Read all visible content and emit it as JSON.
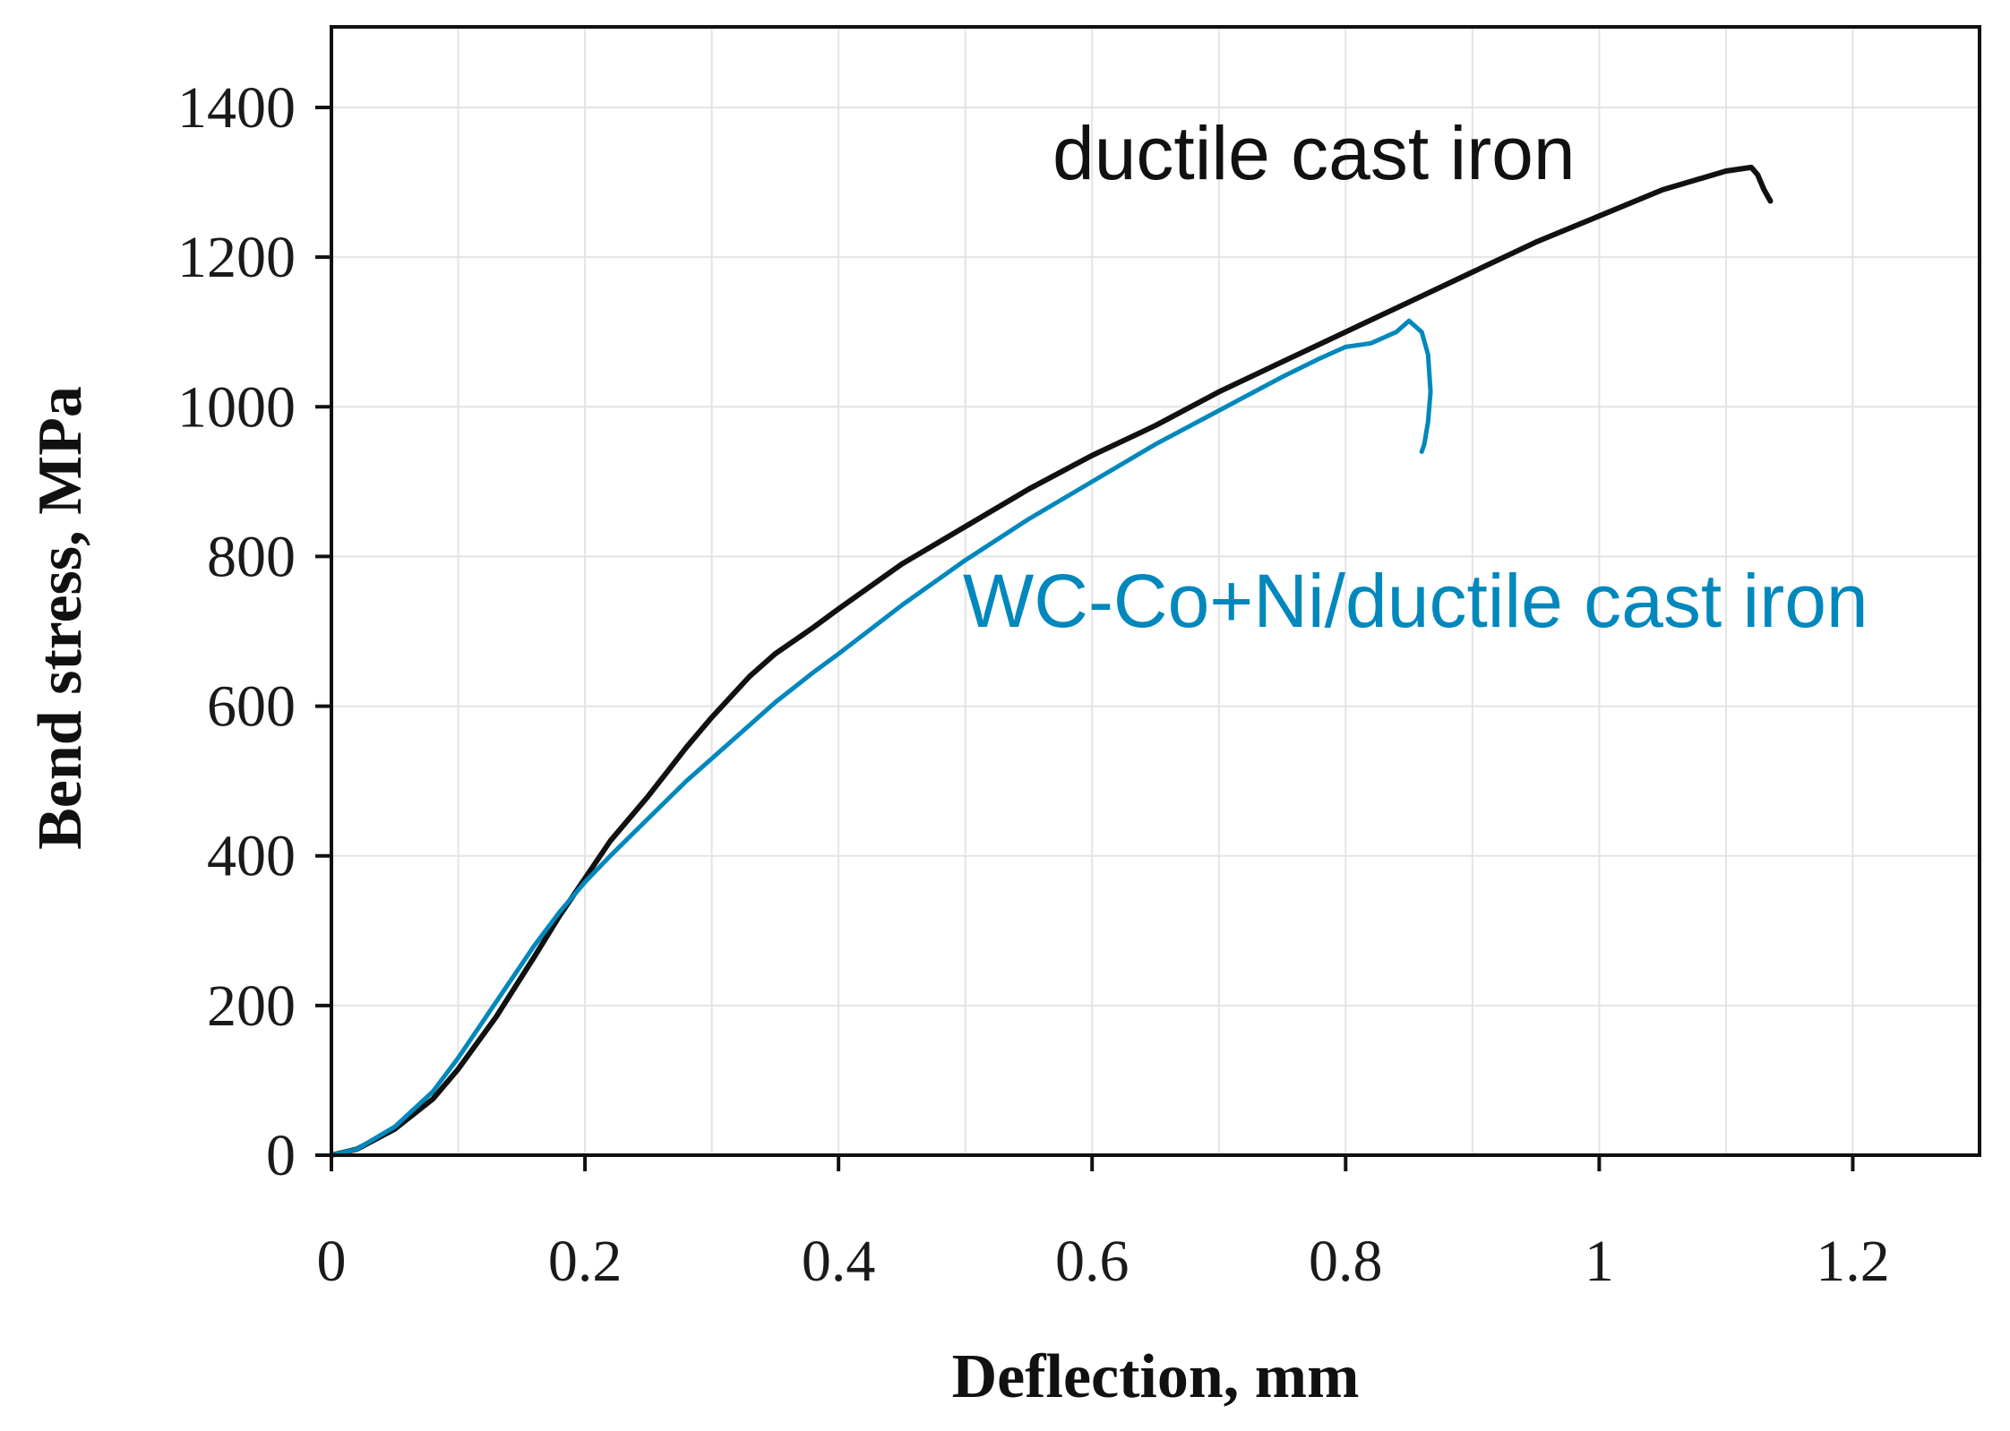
{
  "chart_data": {
    "type": "line",
    "title": "",
    "xlabel": "Deflection, mm",
    "ylabel": "Bend stress, MPa",
    "xlim": [
      0,
      1.3
    ],
    "ylim": [
      0,
      1400
    ],
    "grid": true,
    "x_ticks": [
      0,
      0.2,
      0.4,
      0.6,
      0.8,
      1,
      1.2
    ],
    "x_tick_labels": [
      "0",
      "0.2",
      "0.4",
      "0.6",
      "0.8",
      "1",
      "1.2"
    ],
    "y_ticks": [
      0,
      200,
      400,
      600,
      800,
      1000,
      1200,
      1400
    ],
    "y_tick_labels": [
      "0",
      "200",
      "400",
      "600",
      "800",
      "1000",
      "1200",
      "1400"
    ],
    "series": [
      {
        "name": "ductile cast iron",
        "color": "#111111",
        "x": [
          0.0,
          0.02,
          0.05,
          0.08,
          0.1,
          0.13,
          0.16,
          0.18,
          0.2,
          0.22,
          0.25,
          0.28,
          0.3,
          0.33,
          0.35,
          0.38,
          0.4,
          0.45,
          0.5,
          0.55,
          0.6,
          0.65,
          0.7,
          0.75,
          0.8,
          0.85,
          0.9,
          0.95,
          1.0,
          1.05,
          1.08,
          1.1,
          1.12,
          1.125,
          1.13,
          1.135
        ],
        "y": [
          0,
          8,
          35,
          75,
          115,
          185,
          265,
          320,
          370,
          420,
          480,
          545,
          585,
          640,
          670,
          705,
          730,
          790,
          840,
          890,
          935,
          975,
          1020,
          1060,
          1100,
          1140,
          1180,
          1220,
          1255,
          1290,
          1305,
          1315,
          1320,
          1310,
          1290,
          1275
        ]
      },
      {
        "name": "WC-Co+Ni/ductile cast iron",
        "color": "#0088bd",
        "x": [
          0.0,
          0.02,
          0.05,
          0.08,
          0.1,
          0.13,
          0.16,
          0.18,
          0.2,
          0.22,
          0.25,
          0.28,
          0.3,
          0.33,
          0.35,
          0.38,
          0.4,
          0.45,
          0.5,
          0.55,
          0.6,
          0.65,
          0.7,
          0.75,
          0.78,
          0.8,
          0.82,
          0.84,
          0.85,
          0.86,
          0.865,
          0.867,
          0.865,
          0.862,
          0.86
        ],
        "y": [
          0,
          8,
          38,
          85,
          130,
          205,
          280,
          325,
          365,
          400,
          450,
          500,
          530,
          575,
          605,
          645,
          670,
          735,
          795,
          850,
          900,
          950,
          995,
          1040,
          1065,
          1080,
          1085,
          1100,
          1115,
          1100,
          1070,
          1020,
          980,
          950,
          940
        ]
      }
    ],
    "annotations": [
      {
        "text": "ductile cast iron",
        "series": 0
      },
      {
        "text": "WC-Co+Ni/ductile cast iron",
        "series": 1
      }
    ]
  }
}
